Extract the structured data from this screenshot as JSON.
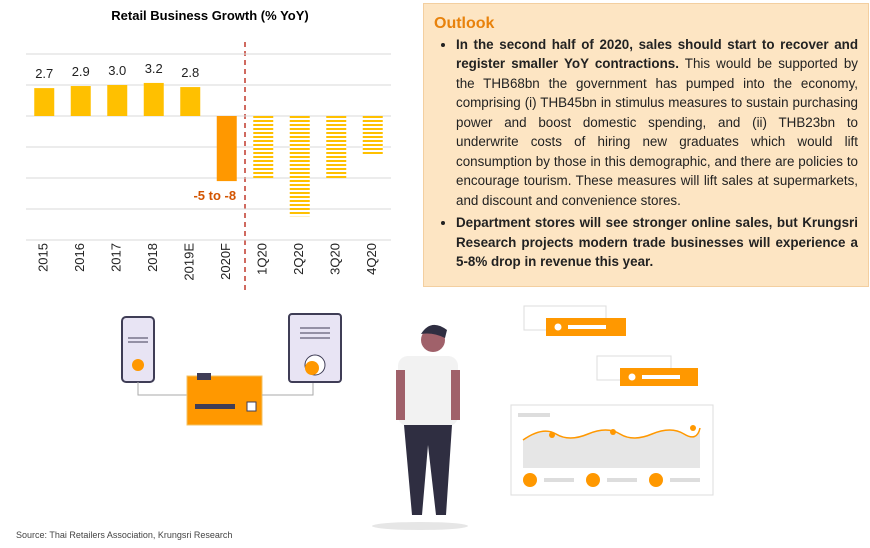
{
  "chart_data": {
    "type": "bar",
    "title": "Retail Business Growth (% YoY)",
    "categories": [
      "2015",
      "2016",
      "2017",
      "2018",
      "2019E",
      "2020F",
      "1Q20",
      "2Q20",
      "3Q20",
      "4Q20"
    ],
    "values": [
      2.7,
      2.9,
      3.0,
      3.2,
      2.8,
      -6.3,
      -6.0,
      -9.7,
      -6.0,
      -3.8
    ],
    "value_labels": [
      "2.7",
      "2.9",
      "3.0",
      "3.2",
      "2.8",
      null,
      null,
      null,
      null,
      null
    ],
    "styles": [
      "solid",
      "solid",
      "solid",
      "solid",
      "solid",
      "solid",
      "hatched",
      "hatched",
      "hatched",
      "hatched"
    ],
    "annotation": "-5 to -8",
    "color": "#ffc000",
    "highlight_color": "#ff9800",
    "ylim": [
      -12,
      6
    ],
    "yticks": [
      6,
      3,
      0,
      -3,
      -6,
      -9,
      -12
    ],
    "grid": true
  },
  "outlook": {
    "title": "Outlook",
    "bullets": [
      [
        "In the second half of 2020, sales should start to recover and register smaller YoY contractions.",
        " This would be supported by the THB68bn the government has pumped into the economy, comprising (i) THB45bn in stimulus measures to sustain purchasing power and boost domestic spending, and (ii) THB23bn to underwrite costs of hiring new graduates which would lift consumption by those in this demographic, and there are policies to encourage tourism. These measures will lift sales at supermarkets, and discount and convenience stores."
      ],
      [
        "Department stores will see stronger online sales, but Krungsri Research projects modern trade businesses will experience a 5-8% drop in revenue this year.",
        ""
      ]
    ]
  },
  "source": "Source: Thai Retailers Association, Krungsri Research"
}
